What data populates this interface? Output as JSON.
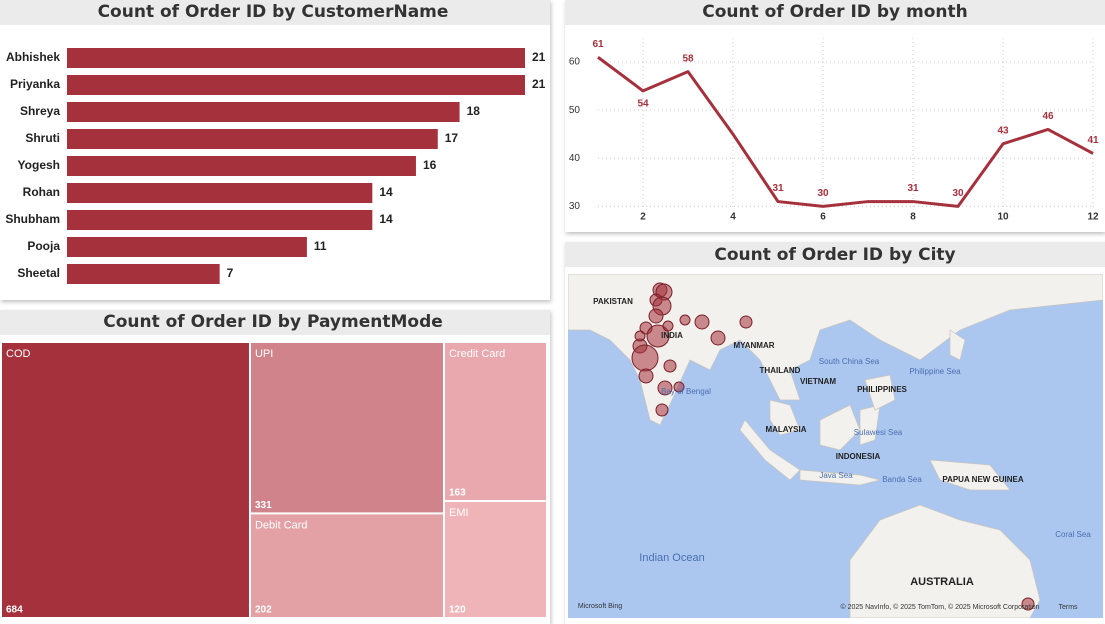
{
  "chart_data": [
    {
      "type": "hbar",
      "title": "Count of Order ID by CustomerName",
      "categories": [
        "Abhishek",
        "Priyanka",
        "Shreya",
        "Shruti",
        "Yogesh",
        "Rohan",
        "Shubham",
        "Pooja",
        "Sheetal"
      ],
      "values": [
        21,
        21,
        18,
        17,
        16,
        14,
        14,
        11,
        7
      ],
      "color": "#a4313c"
    },
    {
      "type": "line",
      "title": "Count of Order ID by month",
      "x": [
        1,
        2,
        3,
        4,
        5,
        6,
        7,
        8,
        9,
        10,
        11,
        12
      ],
      "values": [
        61,
        54,
        58,
        45,
        31,
        30,
        31,
        31,
        30,
        43,
        46,
        41
      ],
      "value_labels": [
        "61",
        "54",
        "58",
        null,
        "31",
        "30",
        null,
        "31",
        "30",
        "43",
        "46",
        "41"
      ],
      "color": "#a4313c",
      "xlim": [
        1,
        12
      ],
      "xticks": [
        2,
        4,
        6,
        8,
        10,
        12
      ],
      "ylim": [
        28,
        65
      ],
      "yticks": [
        30,
        40,
        50,
        60
      ],
      "grid": true
    },
    {
      "type": "treemap",
      "title": "Count of Order ID by PaymentMode",
      "categories": [
        "COD",
        "UPI",
        "Debit Card",
        "Credit Card",
        "EMI"
      ],
      "values": [
        684,
        331,
        202,
        163,
        120
      ],
      "colors": [
        "#a4313c",
        "#d0838a",
        "#e3a1a6",
        "#e8a8ad",
        "#eeb4b8"
      ]
    },
    {
      "type": "map",
      "title": "Count of Order ID by City",
      "labels": [
        "PAKISTAN",
        "INDIA",
        "MYANMAR",
        "THAILAND",
        "VIETNAM",
        "PHILIPPINES",
        "MALAYSIA",
        "INDONESIA",
        "PAPUA NEW GUINEA",
        "AUSTRALIA",
        "South China Sea",
        "Philippine Sea",
        "Bay of Bengal",
        "Sulawesi Sea",
        "Java Sea",
        "Banda Sea",
        "Coral Sea",
        "Indian Ocean",
        "Microsoft Bing",
        "© 2025 NavInfo, © 2025 TomTom, © 2025 Microsoft Corporation",
        "Terms"
      ]
    }
  ]
}
